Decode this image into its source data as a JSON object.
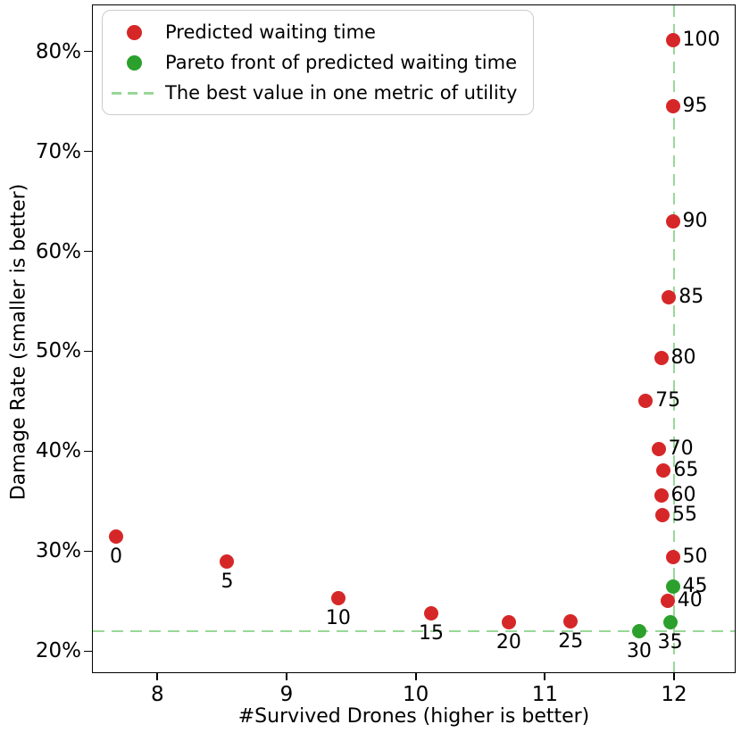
{
  "figure": {
    "background": "#ffffff"
  },
  "legend": {
    "position": "upper left",
    "items": [
      {
        "marker": "dot",
        "color": "#d62728",
        "label": "Predicted waiting time"
      },
      {
        "marker": "dot",
        "color": "#2ca02c",
        "label": "Pareto front of predicted waiting time"
      },
      {
        "marker": "dash",
        "color": "#98d898",
        "label": "The best value in one metric of utility"
      }
    ]
  },
  "chart_data": {
    "type": "scatter",
    "title": "",
    "xlabel": "#Survived Drones (higher is better)",
    "ylabel": "Damage Rate (smaller is better)",
    "xlim": [
      7.5,
      12.47
    ],
    "ylim": [
      17.9,
      84.6
    ],
    "x_ticks": [
      8,
      9,
      10,
      11,
      12
    ],
    "y_ticks": [
      20,
      30,
      40,
      50,
      60,
      70,
      80
    ],
    "y_tick_suffix": "%",
    "grid": false,
    "colors": {
      "predicted": "#d62728",
      "pareto": "#2ca02c",
      "best_value_line": "#98d898"
    },
    "series": [
      {
        "name": "Predicted waiting time",
        "color": "#d62728",
        "points": [
          {
            "label": "0",
            "x": 7.68,
            "y": 31.5,
            "label_pos": "below"
          },
          {
            "label": "5",
            "x": 8.54,
            "y": 29.0,
            "label_pos": "below"
          },
          {
            "label": "10",
            "x": 9.4,
            "y": 25.3,
            "label_pos": "below"
          },
          {
            "label": "15",
            "x": 10.12,
            "y": 23.8,
            "label_pos": "below"
          },
          {
            "label": "20",
            "x": 10.72,
            "y": 22.9,
            "label_pos": "below"
          },
          {
            "label": "25",
            "x": 11.2,
            "y": 23.0,
            "label_pos": "below"
          },
          {
            "label": "40",
            "x": 11.95,
            "y": 25.0,
            "label_pos": "right"
          },
          {
            "label": "50",
            "x": 11.99,
            "y": 29.4,
            "label_pos": "right"
          },
          {
            "label": "55",
            "x": 11.91,
            "y": 33.6,
            "label_pos": "right"
          },
          {
            "label": "60",
            "x": 11.9,
            "y": 35.6,
            "label_pos": "right"
          },
          {
            "label": "65",
            "x": 11.92,
            "y": 38.1,
            "label_pos": "right"
          },
          {
            "label": "70",
            "x": 11.88,
            "y": 40.2,
            "label_pos": "right"
          },
          {
            "label": "75",
            "x": 11.78,
            "y": 45.0,
            "label_pos": "right"
          },
          {
            "label": "80",
            "x": 11.9,
            "y": 49.3,
            "label_pos": "right"
          },
          {
            "label": "85",
            "x": 11.96,
            "y": 55.4,
            "label_pos": "right"
          },
          {
            "label": "90",
            "x": 11.99,
            "y": 63.0,
            "label_pos": "right"
          },
          {
            "label": "95",
            "x": 11.99,
            "y": 74.5,
            "label_pos": "right"
          },
          {
            "label": "100",
            "x": 11.99,
            "y": 81.1,
            "label_pos": "right"
          }
        ]
      },
      {
        "name": "Pareto front of predicted waiting time",
        "color": "#2ca02c",
        "points": [
          {
            "label": "30",
            "x": 11.73,
            "y": 22.0,
            "label_pos": "below"
          },
          {
            "label": "35",
            "x": 11.97,
            "y": 22.9,
            "label_pos": "below"
          },
          {
            "label": "45",
            "x": 11.99,
            "y": 26.5,
            "label_pos": "right"
          }
        ]
      }
    ],
    "ref_lines": [
      {
        "orientation": "vertical",
        "value": 12.0,
        "color": "#98d898",
        "meaning": "The best value in one metric of utility"
      },
      {
        "orientation": "horizontal",
        "value": 22.0,
        "color": "#98d898",
        "meaning": "The best value in one metric of utility"
      }
    ]
  }
}
